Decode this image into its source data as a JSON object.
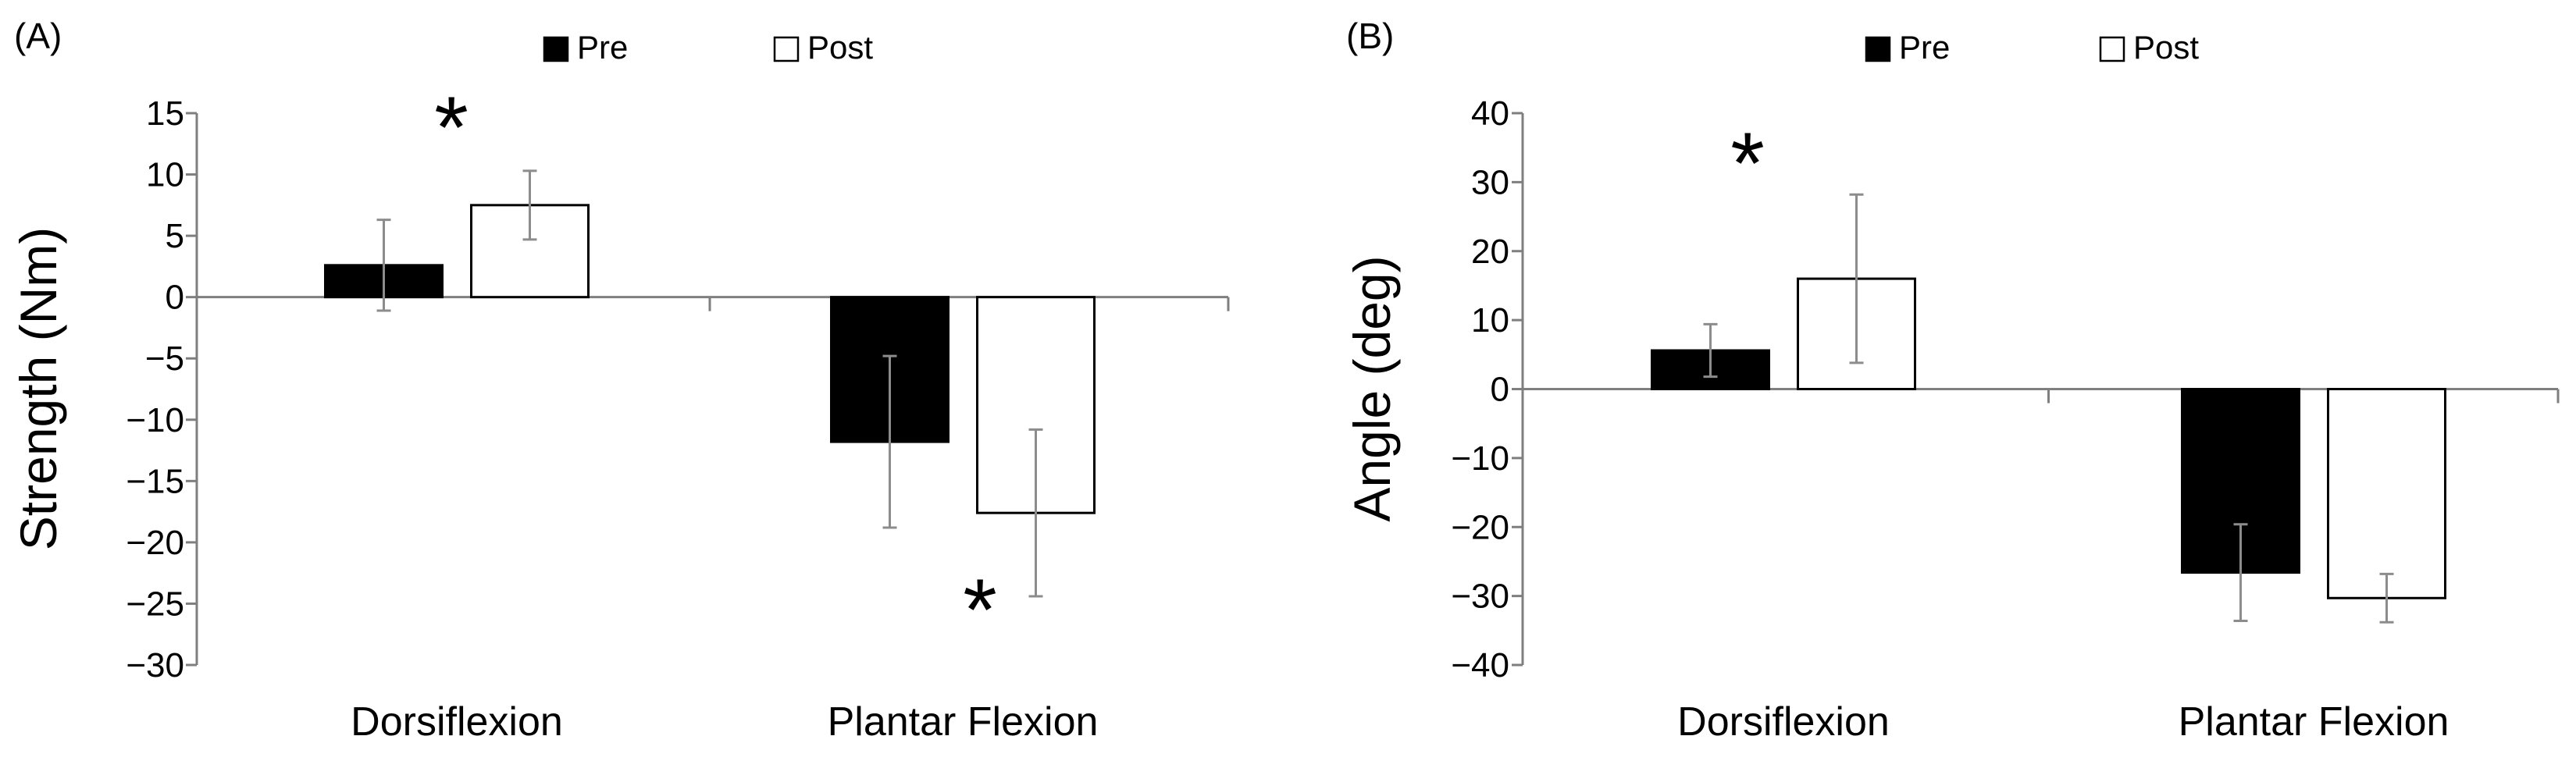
{
  "chart_data": [
    {
      "type": "bar",
      "panel_label": "(A)",
      "title": "",
      "xlabel": "",
      "ylabel": "Strength (Nm)",
      "ylim": [
        -30,
        15
      ],
      "yticks": [
        15,
        10,
        5,
        0,
        -5,
        -10,
        -15,
        -20,
        -25,
        -30
      ],
      "categories": [
        "Dorsiflexion",
        "Plantar Flexion"
      ],
      "legend": "top-center",
      "series": [
        {
          "name": "Pre",
          "color": "#000000",
          "values": [
            2.6,
            -11.8
          ],
          "error": [
            3.7,
            7.0
          ]
        },
        {
          "name": "Post",
          "color": "#ffffff",
          "values": [
            7.5,
            -17.6
          ],
          "error": [
            2.8,
            6.8
          ]
        }
      ],
      "annotations": [
        {
          "text": "*",
          "category": 0,
          "series": 1,
          "position": "above"
        },
        {
          "text": "*",
          "category": 1,
          "series": 1,
          "position": "below"
        }
      ]
    },
    {
      "type": "bar",
      "panel_label": "(B)",
      "title": "",
      "xlabel": "",
      "ylabel": "Angle (deg)",
      "ylim": [
        -40,
        40
      ],
      "yticks": [
        40,
        30,
        20,
        10,
        0,
        -10,
        -20,
        -30,
        -40
      ],
      "categories": [
        "Dorsiflexion",
        "Plantar Flexion"
      ],
      "legend": "top-center",
      "series": [
        {
          "name": "Pre",
          "color": "#000000",
          "values": [
            5.6,
            -26.6
          ],
          "error": [
            3.8,
            7.0
          ]
        },
        {
          "name": "Post",
          "color": "#ffffff",
          "values": [
            16.0,
            -30.3
          ],
          "error": [
            12.2,
            3.5
          ]
        }
      ],
      "annotations": [
        {
          "text": "*",
          "category": 0,
          "series": 0,
          "position": "above"
        }
      ]
    }
  ]
}
